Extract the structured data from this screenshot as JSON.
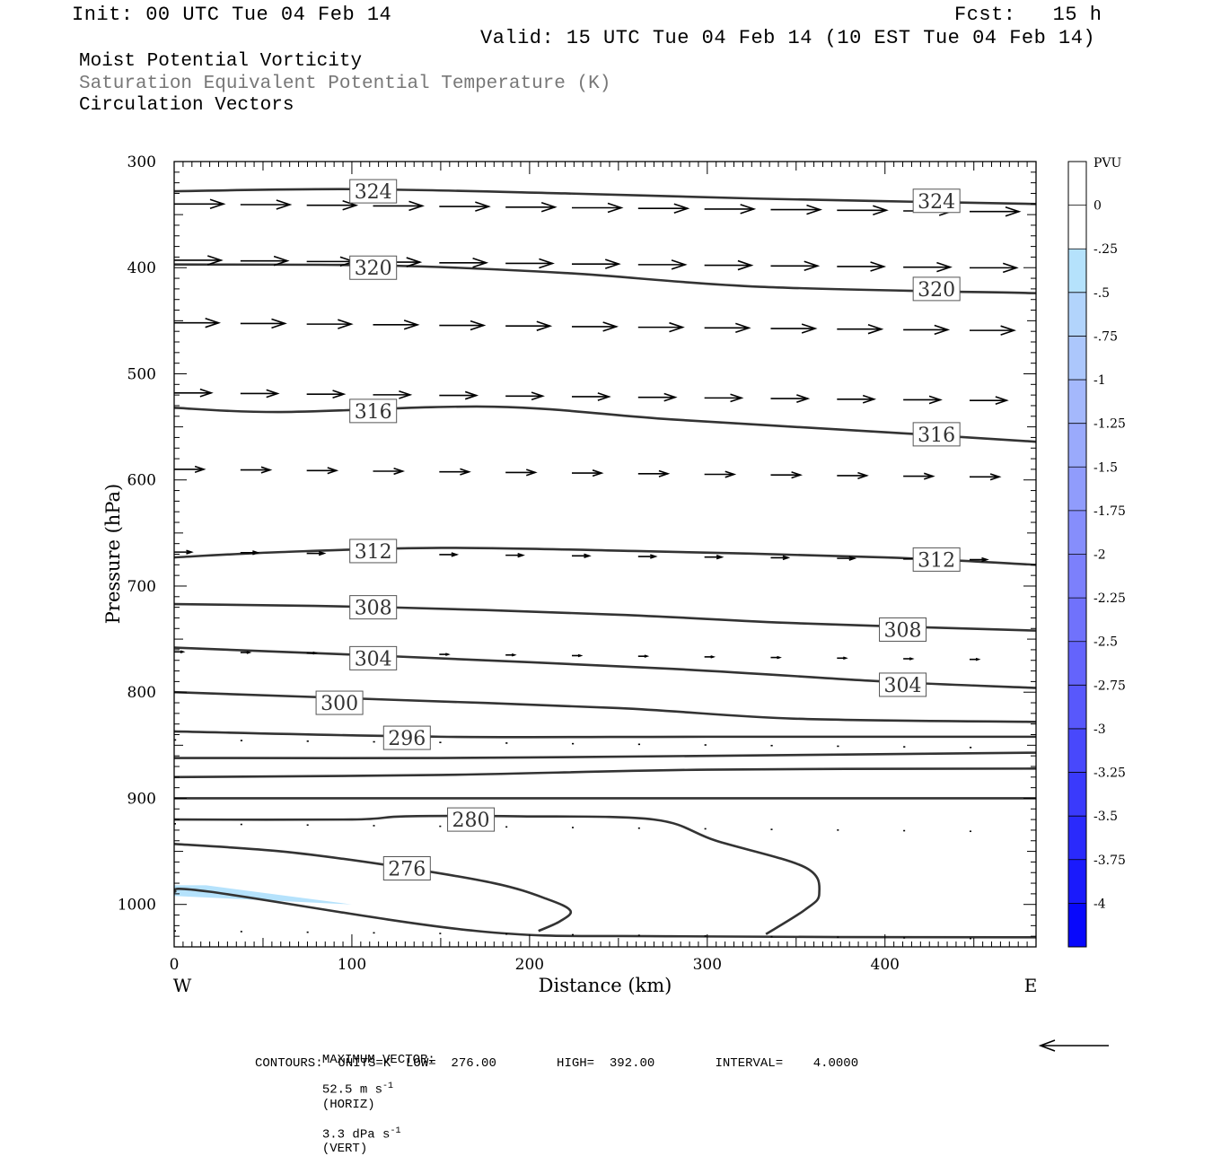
{
  "header": {
    "init": "Init: 00 UTC Tue 04 Feb 14",
    "fcst": "Fcst:   15 h",
    "valid": "Valid: 15 UTC Tue 04 Feb 14 (10 EST Tue 04 Feb 14)",
    "fields": [
      "Moist Potential Vorticity",
      "Saturation Equivalent Potential Temperature (K)",
      "Circulation Vectors"
    ]
  },
  "footer": {
    "max_vector_label": "MAXIMUM VECTOR:",
    "horiz": "52.5 m s",
    "horiz_tag": "(HORIZ)",
    "vert": "3.3 dPa s",
    "vert_tag": "(VERT)",
    "sup": "-1",
    "contours": "CONTOURS:  UNITS=K  LOW=  276.00        HIGH=  392.00        INTERVAL=    4.0000"
  },
  "chart_data": {
    "type": "cross-section",
    "xlabel": "Distance (km)",
    "ylabel": "Pressure (hPa)",
    "xlim": [
      0,
      485
    ],
    "ylim": [
      1040,
      300
    ],
    "x_ticks": [
      0,
      100,
      200,
      300,
      400
    ],
    "y_ticks": [
      300,
      400,
      500,
      600,
      700,
      800,
      900,
      1000
    ],
    "x_end_labels": {
      "left": "W",
      "right": "E"
    },
    "contour_color": "#333333",
    "contours": [
      {
        "label": "324",
        "points": [
          [
            0,
            328
          ],
          [
            100,
            326
          ],
          [
            220,
            330
          ],
          [
            330,
            335
          ],
          [
            485,
            340
          ]
        ],
        "labels_at": [
          [
            112,
            328
          ],
          [
            429,
            337
          ]
        ]
      },
      {
        "label": "320",
        "points": [
          [
            0,
            397
          ],
          [
            120,
            398
          ],
          [
            220,
            405
          ],
          [
            330,
            418
          ],
          [
            485,
            424
          ]
        ],
        "labels_at": [
          [
            112,
            400
          ],
          [
            429,
            420
          ]
        ]
      },
      {
        "label": "316",
        "points": [
          [
            0,
            532
          ],
          [
            60,
            536
          ],
          [
            180,
            531
          ],
          [
            280,
            543
          ],
          [
            400,
            555
          ],
          [
            485,
            564
          ]
        ],
        "labels_at": [
          [
            112,
            535
          ],
          [
            429,
            557
          ]
        ]
      },
      {
        "label": "312",
        "points": [
          [
            0,
            673
          ],
          [
            60,
            668
          ],
          [
            150,
            664
          ],
          [
            260,
            667
          ],
          [
            400,
            673
          ],
          [
            485,
            680
          ]
        ],
        "labels_at": [
          [
            112,
            667
          ],
          [
            429,
            675
          ]
        ]
      },
      {
        "label": "308",
        "points": [
          [
            0,
            717
          ],
          [
            120,
            720
          ],
          [
            250,
            727
          ],
          [
            350,
            735
          ],
          [
            485,
            742
          ]
        ],
        "labels_at": [
          [
            112,
            720
          ],
          [
            410,
            741
          ]
        ]
      },
      {
        "label": "304",
        "points": [
          [
            0,
            758
          ],
          [
            120,
            766
          ],
          [
            280,
            778
          ],
          [
            400,
            790
          ],
          [
            485,
            796
          ]
        ],
        "labels_at": [
          [
            112,
            768
          ],
          [
            410,
            793
          ]
        ]
      },
      {
        "label": "300",
        "points": [
          [
            0,
            800
          ],
          [
            120,
            807
          ],
          [
            250,
            815
          ],
          [
            350,
            825
          ],
          [
            485,
            828
          ]
        ],
        "labels_at": [
          [
            93,
            810
          ]
        ]
      },
      {
        "label": "296",
        "points": [
          [
            0,
            837
          ],
          [
            150,
            842
          ],
          [
            300,
            842
          ],
          [
            485,
            842
          ]
        ],
        "labels_at": [
          [
            131,
            843
          ]
        ]
      },
      {
        "label": "",
        "points": [
          [
            0,
            862
          ],
          [
            150,
            862
          ],
          [
            300,
            860
          ],
          [
            485,
            857
          ]
        ],
        "labels_at": []
      },
      {
        "label": "",
        "points": [
          [
            0,
            880
          ],
          [
            150,
            878
          ],
          [
            300,
            873
          ],
          [
            485,
            872
          ]
        ],
        "labels_at": []
      },
      {
        "label": "",
        "points": [
          [
            0,
            900
          ],
          [
            485,
            900
          ]
        ],
        "labels_at": []
      },
      {
        "label": "280",
        "points": [
          [
            0,
            920
          ],
          [
            100,
            920
          ],
          [
            130,
            917
          ],
          [
            195,
            917
          ],
          [
            270,
            920
          ],
          [
            305,
            940
          ],
          [
            355,
            965
          ],
          [
            363,
            990
          ],
          [
            355,
            1005
          ],
          [
            333,
            1028
          ]
        ],
        "labels_at": [
          [
            167,
            920
          ]
        ]
      },
      {
        "label": "276",
        "points": [
          [
            0,
            943
          ],
          [
            60,
            950
          ],
          [
            120,
            963
          ],
          [
            180,
            980
          ],
          [
            210,
            995
          ],
          [
            223,
            1006
          ],
          [
            217,
            1016
          ],
          [
            205,
            1025
          ]
        ],
        "labels_at": [
          [
            131,
            966
          ]
        ]
      },
      {
        "label": "",
        "points": [
          [
            0,
            988
          ],
          [
            20,
            988
          ],
          [
            170,
            1025
          ],
          [
            280,
            1030
          ],
          [
            485,
            1031
          ]
        ],
        "labels_at": []
      }
    ],
    "pv_fill": {
      "value_range": [
        -0.25,
        0
      ],
      "points": [
        [
          0,
          982
        ],
        [
          18,
          982
        ],
        [
          100,
          1000
        ],
        [
          0,
          992
        ]
      ]
    },
    "vectors": {
      "color": "#000000",
      "rows": [
        {
          "p": 340,
          "n": 13,
          "x0": 0,
          "dx": 37.3,
          "u": 1.0
        },
        {
          "p": 393,
          "n": 13,
          "x0": 0,
          "dx": 37.3,
          "u": 0.95
        },
        {
          "p": 452,
          "n": 13,
          "x0": 0,
          "dx": 37.3,
          "u": 0.9
        },
        {
          "p": 518,
          "n": 13,
          "x0": 0,
          "dx": 37.3,
          "u": 0.75
        },
        {
          "p": 590,
          "n": 13,
          "x0": 0,
          "dx": 37.3,
          "u": 0.6
        },
        {
          "p": 668,
          "n": 13,
          "x0": 0,
          "dx": 37.3,
          "u": 0.35
        },
        {
          "p": 762,
          "n": 13,
          "x0": 0,
          "dx": 37.3,
          "u": 0.18
        },
        {
          "p": 845,
          "n": 13,
          "x0": 0,
          "dx": 37.3,
          "u": 0.04
        },
        {
          "p": 924,
          "n": 13,
          "x0": 0,
          "dx": 37.3,
          "u": 0.02
        },
        {
          "p": 1025,
          "n": 13,
          "x0": 0,
          "dx": 37.3,
          "u": 0.01
        }
      ],
      "reference_length": 1.0
    },
    "colorbar": {
      "title": "PVU",
      "levels": [
        "0",
        "-.25",
        "-.5",
        "-.75",
        "-1",
        "-1.25",
        "-1.5",
        "-1.75",
        "-2",
        "-2.25",
        "-2.5",
        "-2.75",
        "-3",
        "-3.25",
        "-3.5",
        "-3.75",
        "-4"
      ],
      "colors": [
        "#ffffff",
        "#ffffff",
        "#b5e2fc",
        "#b2d4fc",
        "#acc7fc",
        "#a4b8fc",
        "#9aaafc",
        "#909cfc",
        "#868efc",
        "#7c80fc",
        "#7072fc",
        "#6464fc",
        "#5858fc",
        "#4848fc",
        "#3a3afc",
        "#2a2afc",
        "#1a1afc",
        "#0808fc"
      ]
    }
  }
}
